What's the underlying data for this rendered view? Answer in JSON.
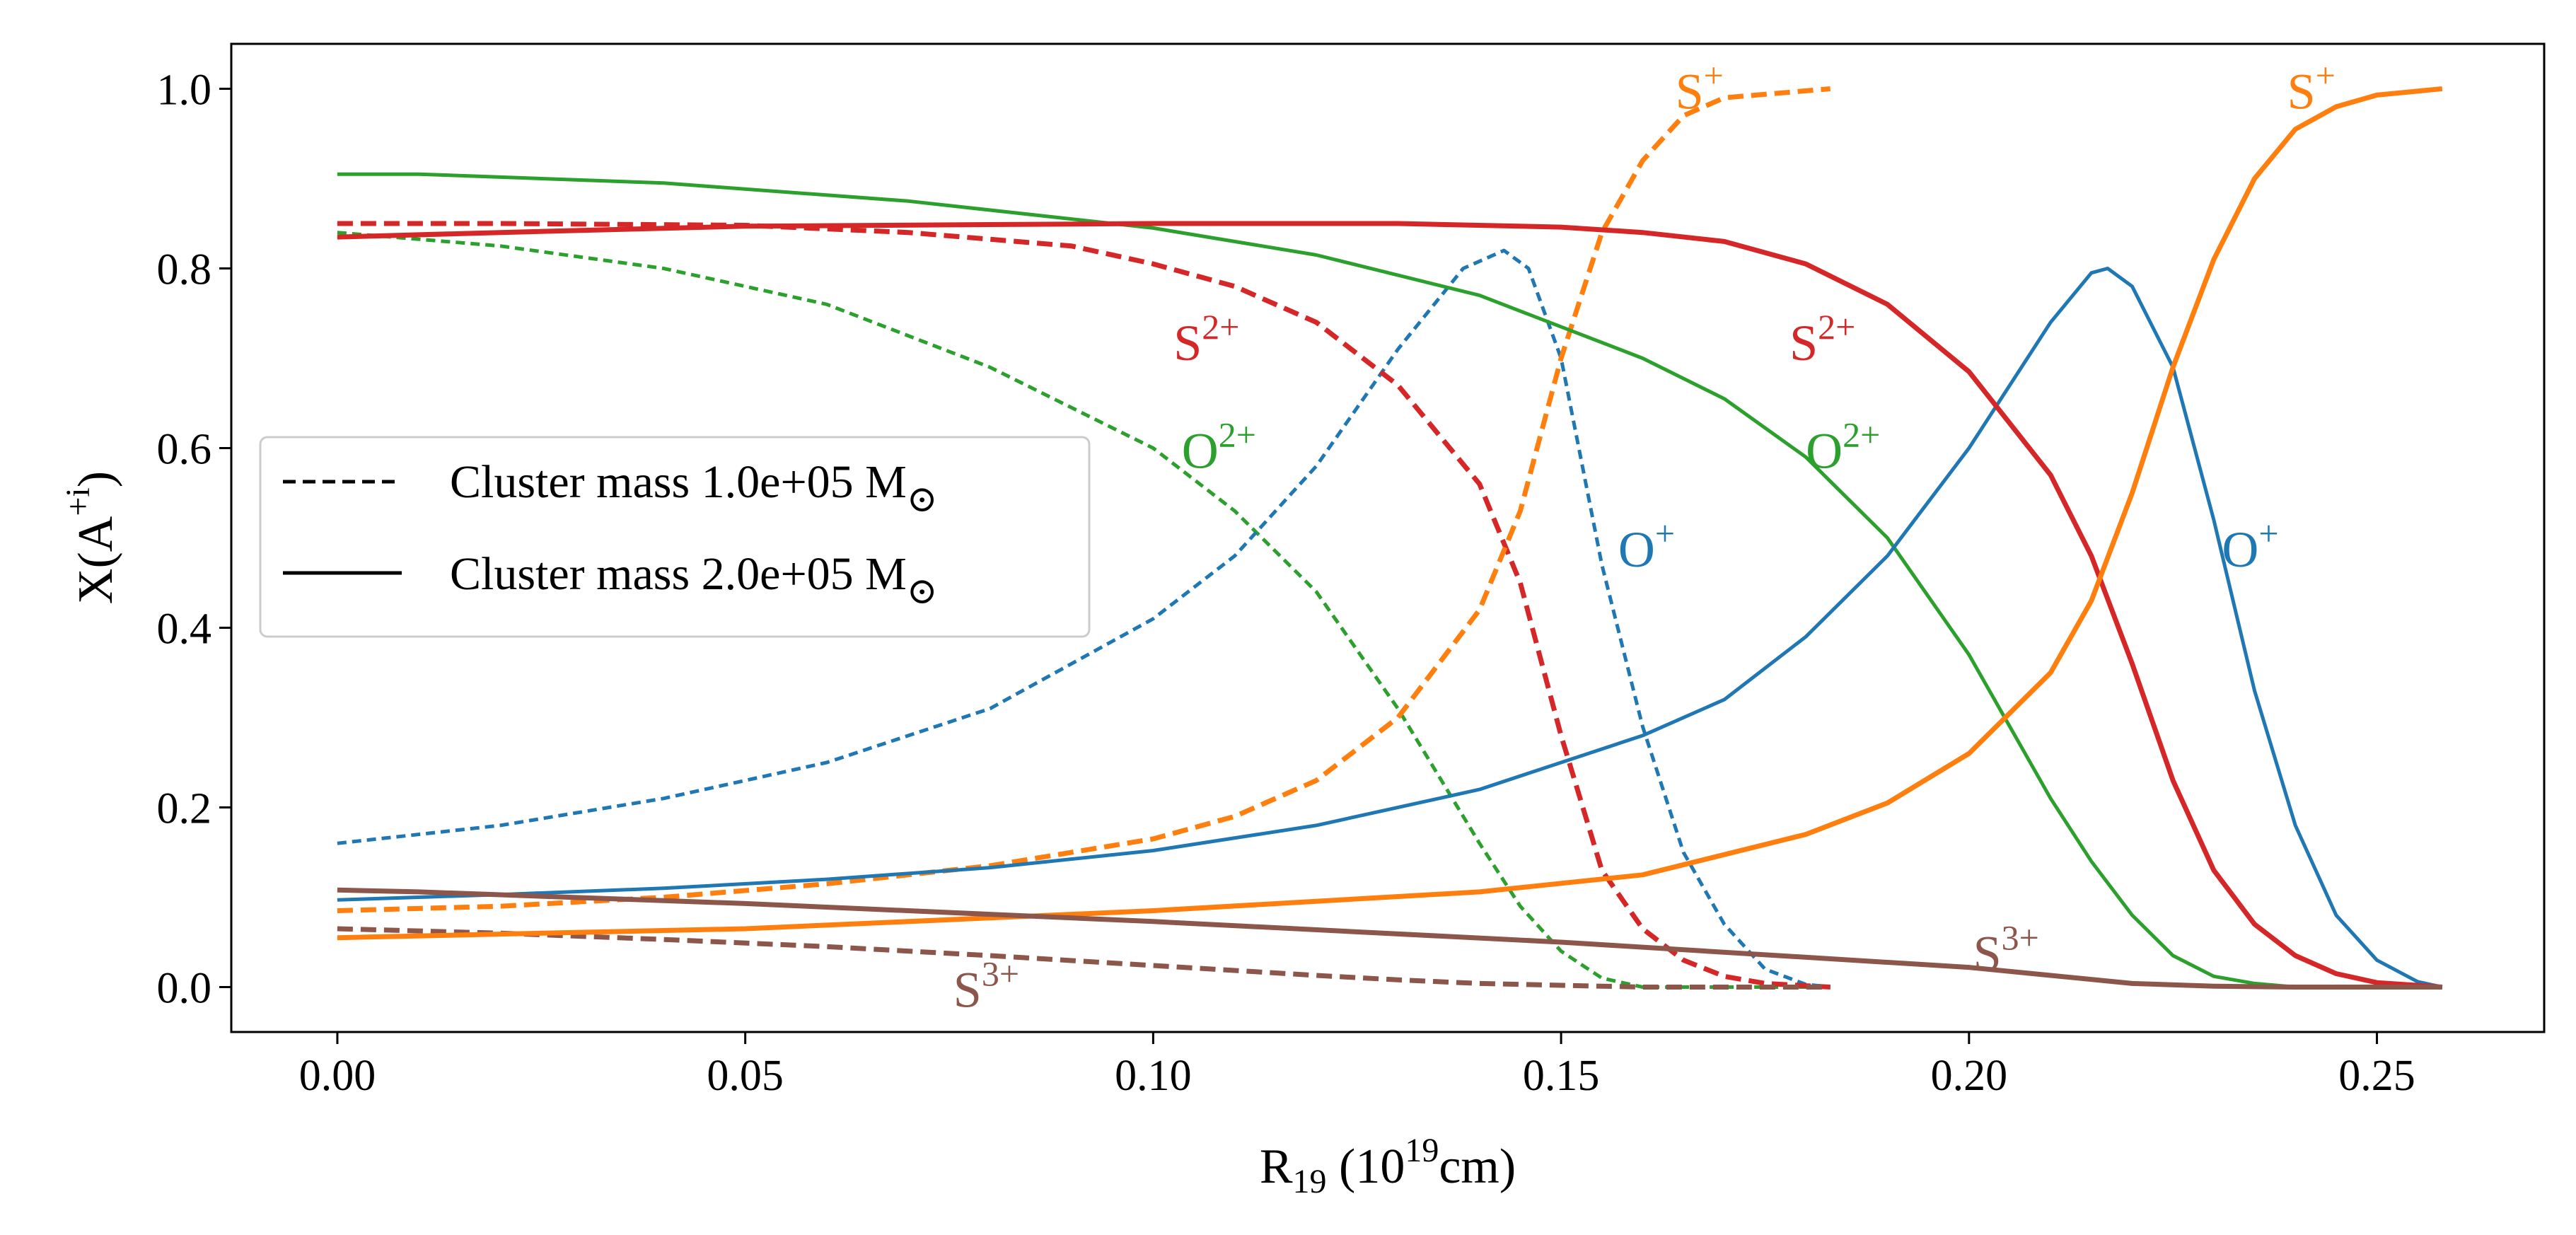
{
  "chart_data": {
    "type": "line",
    "title": "",
    "xlabel": {
      "main": "R",
      "sub": "19",
      "open": " (10",
      "sup": "19",
      "close": "cm)"
    },
    "ylabel": {
      "main": "X(A",
      "sup": "+i",
      "close": ")"
    },
    "xlim": [
      -0.013,
      0.2705
    ],
    "ylim": [
      -0.05,
      1.05
    ],
    "xticks": [
      0.0,
      0.05,
      0.1,
      0.15,
      0.2,
      0.25
    ],
    "xtick_labels": [
      "0.00",
      "0.05",
      "0.10",
      "0.15",
      "0.20",
      "0.25"
    ],
    "yticks": [
      0.0,
      0.2,
      0.4,
      0.6,
      0.8,
      1.0
    ],
    "ytick_labels": [
      "0.0",
      "0.2",
      "0.4",
      "0.6",
      "0.8",
      "1.0"
    ],
    "grid": false,
    "legend": {
      "position": "center-left",
      "entries": [
        {
          "style": "dashed",
          "label": "Cluster mass 1.0e+05 M",
          "symbol": "⊙"
        },
        {
          "style": "solid",
          "label": "Cluster mass 2.0e+05 M",
          "symbol": "⊙"
        }
      ]
    },
    "series": [
      {
        "name": "O2+ (1.0e+05)",
        "color": "#2ca02c",
        "style": "dashed",
        "thick": false,
        "points": [
          [
            0.0,
            0.84
          ],
          [
            0.02,
            0.825
          ],
          [
            0.04,
            0.8
          ],
          [
            0.06,
            0.76
          ],
          [
            0.08,
            0.69
          ],
          [
            0.1,
            0.6
          ],
          [
            0.11,
            0.53
          ],
          [
            0.12,
            0.44
          ],
          [
            0.13,
            0.31
          ],
          [
            0.14,
            0.16
          ],
          [
            0.145,
            0.09
          ],
          [
            0.15,
            0.04
          ],
          [
            0.155,
            0.01
          ],
          [
            0.16,
            0.0
          ],
          [
            0.183,
            0.0
          ]
        ]
      },
      {
        "name": "O+ (1.0e+05)",
        "color": "#1f77b4",
        "style": "dashed",
        "thick": false,
        "points": [
          [
            0.0,
            0.16
          ],
          [
            0.02,
            0.18
          ],
          [
            0.04,
            0.21
          ],
          [
            0.06,
            0.25
          ],
          [
            0.08,
            0.31
          ],
          [
            0.1,
            0.41
          ],
          [
            0.11,
            0.48
          ],
          [
            0.12,
            0.58
          ],
          [
            0.13,
            0.71
          ],
          [
            0.138,
            0.8
          ],
          [
            0.143,
            0.82
          ],
          [
            0.146,
            0.8
          ],
          [
            0.15,
            0.7
          ],
          [
            0.155,
            0.47
          ],
          [
            0.16,
            0.29
          ],
          [
            0.165,
            0.15
          ],
          [
            0.17,
            0.07
          ],
          [
            0.175,
            0.02
          ],
          [
            0.18,
            0.003
          ],
          [
            0.183,
            0.0
          ]
        ]
      },
      {
        "name": "S2+ (1.0e+05)",
        "color": "#d62728",
        "style": "dashed",
        "thick": true,
        "points": [
          [
            0.0,
            0.85
          ],
          [
            0.02,
            0.85
          ],
          [
            0.05,
            0.848
          ],
          [
            0.07,
            0.84
          ],
          [
            0.09,
            0.825
          ],
          [
            0.1,
            0.805
          ],
          [
            0.11,
            0.78
          ],
          [
            0.12,
            0.74
          ],
          [
            0.13,
            0.67
          ],
          [
            0.14,
            0.56
          ],
          [
            0.145,
            0.45
          ],
          [
            0.15,
            0.28
          ],
          [
            0.155,
            0.13
          ],
          [
            0.16,
            0.065
          ],
          [
            0.165,
            0.03
          ],
          [
            0.17,
            0.012
          ],
          [
            0.175,
            0.004
          ],
          [
            0.183,
            0.0
          ]
        ]
      },
      {
        "name": "S+ (1.0e+05)",
        "color": "#ff7f0e",
        "style": "dashed",
        "thick": true,
        "points": [
          [
            0.0,
            0.085
          ],
          [
            0.02,
            0.09
          ],
          [
            0.04,
            0.1
          ],
          [
            0.06,
            0.115
          ],
          [
            0.08,
            0.135
          ],
          [
            0.1,
            0.165
          ],
          [
            0.11,
            0.19
          ],
          [
            0.12,
            0.23
          ],
          [
            0.13,
            0.3
          ],
          [
            0.14,
            0.42
          ],
          [
            0.145,
            0.53
          ],
          [
            0.15,
            0.7
          ],
          [
            0.155,
            0.84
          ],
          [
            0.16,
            0.92
          ],
          [
            0.165,
            0.97
          ],
          [
            0.17,
            0.99
          ],
          [
            0.183,
            1.0
          ]
        ]
      },
      {
        "name": "S3+ (1.0e+05)",
        "color": "#8c564b",
        "style": "dashed",
        "thick": true,
        "points": [
          [
            0.0,
            0.065
          ],
          [
            0.02,
            0.06
          ],
          [
            0.04,
            0.053
          ],
          [
            0.06,
            0.045
          ],
          [
            0.08,
            0.035
          ],
          [
            0.1,
            0.024
          ],
          [
            0.12,
            0.013
          ],
          [
            0.13,
            0.008
          ],
          [
            0.14,
            0.004
          ],
          [
            0.15,
            0.002
          ],
          [
            0.16,
            0.0
          ],
          [
            0.183,
            0.0
          ]
        ]
      },
      {
        "name": "O2+ (2.0e+05)",
        "color": "#2ca02c",
        "style": "solid",
        "thick": false,
        "points": [
          [
            0.0,
            0.905
          ],
          [
            0.01,
            0.905
          ],
          [
            0.04,
            0.895
          ],
          [
            0.07,
            0.875
          ],
          [
            0.1,
            0.845
          ],
          [
            0.12,
            0.815
          ],
          [
            0.14,
            0.77
          ],
          [
            0.16,
            0.7
          ],
          [
            0.17,
            0.655
          ],
          [
            0.18,
            0.59
          ],
          [
            0.19,
            0.5
          ],
          [
            0.2,
            0.37
          ],
          [
            0.21,
            0.21
          ],
          [
            0.215,
            0.14
          ],
          [
            0.22,
            0.08
          ],
          [
            0.225,
            0.035
          ],
          [
            0.23,
            0.012
          ],
          [
            0.235,
            0.004
          ],
          [
            0.24,
            0.0
          ],
          [
            0.258,
            0.0
          ]
        ]
      },
      {
        "name": "O+ (2.0e+05)",
        "color": "#1f77b4",
        "style": "solid",
        "thick": false,
        "points": [
          [
            0.0,
            0.097
          ],
          [
            0.02,
            0.103
          ],
          [
            0.04,
            0.11
          ],
          [
            0.06,
            0.12
          ],
          [
            0.08,
            0.133
          ],
          [
            0.1,
            0.152
          ],
          [
            0.12,
            0.18
          ],
          [
            0.14,
            0.22
          ],
          [
            0.16,
            0.28
          ],
          [
            0.17,
            0.32
          ],
          [
            0.18,
            0.39
          ],
          [
            0.19,
            0.48
          ],
          [
            0.2,
            0.6
          ],
          [
            0.21,
            0.74
          ],
          [
            0.215,
            0.795
          ],
          [
            0.217,
            0.8
          ],
          [
            0.22,
            0.78
          ],
          [
            0.225,
            0.69
          ],
          [
            0.23,
            0.52
          ],
          [
            0.235,
            0.33
          ],
          [
            0.24,
            0.18
          ],
          [
            0.245,
            0.08
          ],
          [
            0.25,
            0.03
          ],
          [
            0.255,
            0.006
          ],
          [
            0.258,
            0.0
          ]
        ]
      },
      {
        "name": "S2+ (2.0e+05)",
        "color": "#d62728",
        "style": "solid",
        "thick": true,
        "points": [
          [
            0.0,
            0.835
          ],
          [
            0.02,
            0.84
          ],
          [
            0.05,
            0.847
          ],
          [
            0.1,
            0.85
          ],
          [
            0.13,
            0.85
          ],
          [
            0.15,
            0.846
          ],
          [
            0.16,
            0.84
          ],
          [
            0.17,
            0.83
          ],
          [
            0.18,
            0.805
          ],
          [
            0.19,
            0.76
          ],
          [
            0.2,
            0.685
          ],
          [
            0.21,
            0.57
          ],
          [
            0.215,
            0.48
          ],
          [
            0.22,
            0.36
          ],
          [
            0.225,
            0.23
          ],
          [
            0.23,
            0.13
          ],
          [
            0.235,
            0.07
          ],
          [
            0.24,
            0.035
          ],
          [
            0.245,
            0.015
          ],
          [
            0.25,
            0.005
          ],
          [
            0.258,
            0.0
          ]
        ]
      },
      {
        "name": "S+ (2.0e+05)",
        "color": "#ff7f0e",
        "style": "solid",
        "thick": true,
        "points": [
          [
            0.0,
            0.055
          ],
          [
            0.05,
            0.065
          ],
          [
            0.1,
            0.085
          ],
          [
            0.14,
            0.106
          ],
          [
            0.16,
            0.125
          ],
          [
            0.18,
            0.17
          ],
          [
            0.19,
            0.205
          ],
          [
            0.2,
            0.26
          ],
          [
            0.21,
            0.35
          ],
          [
            0.215,
            0.43
          ],
          [
            0.22,
            0.55
          ],
          [
            0.225,
            0.69
          ],
          [
            0.23,
            0.81
          ],
          [
            0.235,
            0.9
          ],
          [
            0.24,
            0.955
          ],
          [
            0.245,
            0.98
          ],
          [
            0.25,
            0.993
          ],
          [
            0.258,
            1.0
          ]
        ]
      },
      {
        "name": "S3+ (2.0e+05)",
        "color": "#8c564b",
        "style": "solid",
        "thick": true,
        "points": [
          [
            0.0,
            0.108
          ],
          [
            0.01,
            0.106
          ],
          [
            0.05,
            0.093
          ],
          [
            0.1,
            0.073
          ],
          [
            0.15,
            0.05
          ],
          [
            0.2,
            0.022
          ],
          [
            0.21,
            0.013
          ],
          [
            0.22,
            0.004
          ],
          [
            0.23,
            0.001
          ],
          [
            0.24,
            0.0
          ],
          [
            0.258,
            0.0
          ]
        ]
      }
    ],
    "annotations": [
      {
        "base": "S",
        "sup": "+",
        "x": 0.164,
        "y": 1.0,
        "color": "#ff7f0e"
      },
      {
        "base": "S",
        "sup": "+",
        "x": 0.239,
        "y": 1.0,
        "color": "#ff7f0e"
      },
      {
        "base": "S",
        "sup": "2+",
        "x": 0.1025,
        "y": 0.72,
        "color": "#d62728"
      },
      {
        "base": "S",
        "sup": "2+",
        "x": 0.178,
        "y": 0.72,
        "color": "#d62728"
      },
      {
        "base": "O",
        "sup": "2+",
        "x": 0.1035,
        "y": 0.6,
        "color": "#2ca02c"
      },
      {
        "base": "O",
        "sup": "2+",
        "x": 0.18,
        "y": 0.6,
        "color": "#2ca02c"
      },
      {
        "base": "O",
        "sup": "+",
        "x": 0.157,
        "y": 0.49,
        "color": "#1f77b4"
      },
      {
        "base": "O",
        "sup": "+",
        "x": 0.231,
        "y": 0.49,
        "color": "#1f77b4"
      },
      {
        "base": "S",
        "sup": "3+",
        "x": 0.0755,
        "y": 0.0,
        "color": "#8c564b"
      },
      {
        "base": "S",
        "sup": "3+",
        "x": 0.2005,
        "y": 0.04,
        "color": "#8c564b"
      }
    ]
  }
}
